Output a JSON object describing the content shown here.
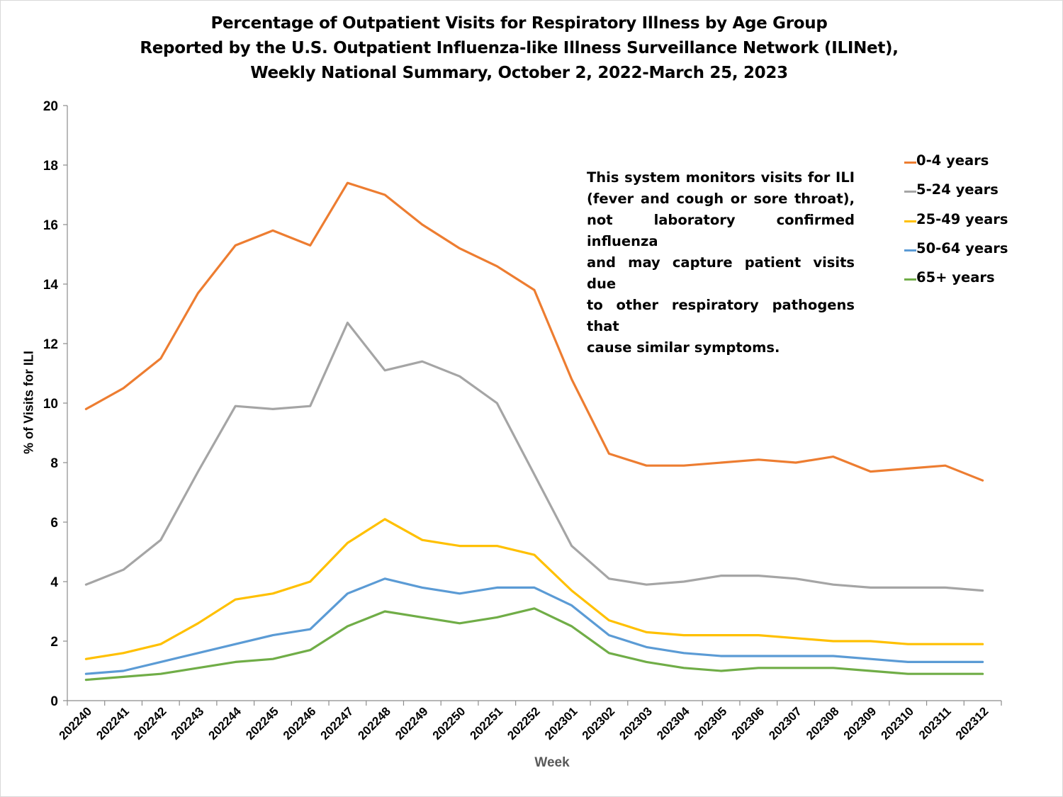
{
  "chart_data": {
    "type": "line",
    "title": [
      "Percentage of Outpatient Visits for Respiratory Illness by Age Group",
      "Reported by the U.S. Outpatient Influenza-like Illness Surveillance Network (ILINet),",
      "Weekly National Summary, October 2, 2022-March 25, 2023"
    ],
    "xlabel": "Week",
    "ylabel": "% of Visits for ILI",
    "ylim": [
      0,
      20
    ],
    "yticks": [
      0,
      2,
      4,
      6,
      8,
      10,
      12,
      14,
      16,
      18,
      20
    ],
    "grid": false,
    "legend_position": "right",
    "categories": [
      "202240",
      "202241",
      "202242",
      "202243",
      "202244",
      "202245",
      "202246",
      "202247",
      "202248",
      "202249",
      "202250",
      "202251",
      "202252",
      "202301",
      "202302",
      "202303",
      "202304",
      "202305",
      "202306",
      "202307",
      "202308",
      "202309",
      "202310",
      "202311",
      "202312"
    ],
    "series": [
      {
        "name": "0-4 years",
        "color": "#ed7d31",
        "values": [
          9.8,
          10.5,
          11.5,
          13.7,
          15.3,
          15.8,
          15.3,
          17.4,
          17.0,
          16.0,
          15.2,
          14.6,
          13.8,
          10.8,
          8.3,
          7.9,
          7.9,
          8.0,
          8.1,
          8.0,
          8.2,
          7.7,
          7.8,
          7.9,
          7.4
        ]
      },
      {
        "name": "5-24 years",
        "color": "#a5a5a5",
        "values": [
          3.9,
          4.4,
          5.4,
          7.7,
          9.9,
          9.8,
          9.9,
          12.7,
          11.1,
          11.4,
          10.9,
          10.0,
          7.6,
          5.2,
          4.1,
          3.9,
          4.0,
          4.2,
          4.2,
          4.1,
          3.9,
          3.8,
          3.8,
          3.8,
          3.7
        ]
      },
      {
        "name": "25-49 years",
        "color": "#ffc000",
        "values": [
          1.4,
          1.6,
          1.9,
          2.6,
          3.4,
          3.6,
          4.0,
          5.3,
          6.1,
          5.4,
          5.2,
          5.2,
          4.9,
          3.7,
          2.7,
          2.3,
          2.2,
          2.2,
          2.2,
          2.1,
          2.0,
          2.0,
          1.9,
          1.9,
          1.9
        ]
      },
      {
        "name": "50-64 years",
        "color": "#5b9bd5",
        "values": [
          0.9,
          1.0,
          1.3,
          1.6,
          1.9,
          2.2,
          2.4,
          3.6,
          4.1,
          3.8,
          3.6,
          3.8,
          3.8,
          3.2,
          2.2,
          1.8,
          1.6,
          1.5,
          1.5,
          1.5,
          1.5,
          1.4,
          1.3,
          1.3,
          1.3
        ]
      },
      {
        "name": "65+ years",
        "color": "#70ad47",
        "values": [
          0.7,
          0.8,
          0.9,
          1.1,
          1.3,
          1.4,
          1.7,
          2.5,
          3.0,
          2.8,
          2.6,
          2.8,
          3.1,
          2.5,
          1.6,
          1.3,
          1.1,
          1.0,
          1.1,
          1.1,
          1.1,
          1.0,
          0.9,
          0.9,
          0.9
        ]
      }
    ],
    "annotation": [
      "This system monitors visits for ILI",
      "(fever and cough or sore throat),",
      "not laboratory confirmed influenza",
      "and may capture patient visits due",
      "to other respiratory pathogens that",
      "cause similar symptoms."
    ]
  }
}
